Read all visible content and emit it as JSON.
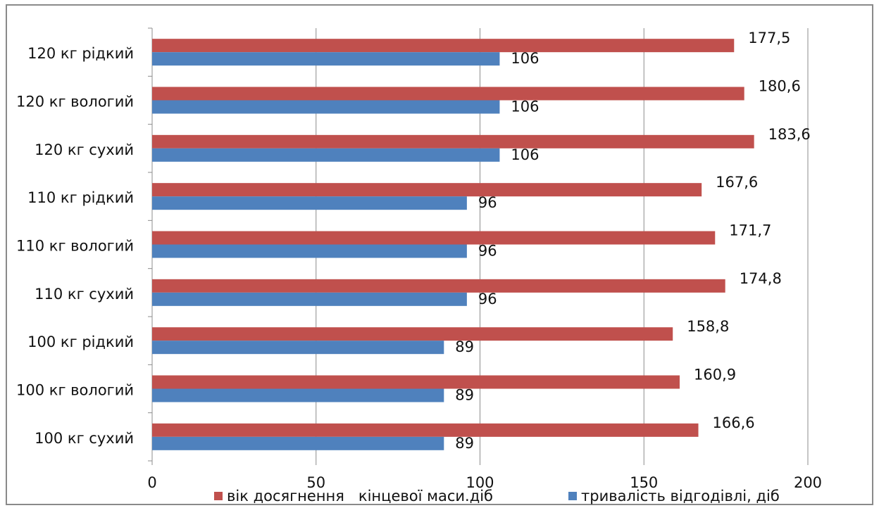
{
  "chart_data": {
    "type": "bar",
    "orientation": "horizontal",
    "title": "",
    "xlabel": "",
    "ylabel": "",
    "xlim": [
      0,
      200
    ],
    "x_ticks": [
      "0",
      "50",
      "100",
      "150",
      "200"
    ],
    "grid": true,
    "legend_position": "bottom",
    "categories": [
      "100 кг сухий",
      "100 кг вологий",
      "100 кг рідкий",
      "110 кг сухий",
      "110 кг вологий",
      "110 кг рідкий",
      "120 кг сухий",
      "120 кг вологий",
      "120 кг рідкий"
    ],
    "series": [
      {
        "name": "вік досягнення   кінцевої маси.діб",
        "color": "#c0504d",
        "values": [
          166.6,
          160.9,
          158.8,
          174.8,
          171.7,
          167.6,
          183.6,
          180.6,
          177.5
        ],
        "labels": [
          "166,6",
          "160,9",
          "158,8",
          "174,8",
          "171,7",
          "167,6",
          "183,6",
          "180,6",
          "177,5"
        ]
      },
      {
        "name": "тривалість відгодівлі, діб",
        "color": "#4f81bd",
        "values": [
          89,
          89,
          89,
          96,
          96,
          96,
          106,
          106,
          106
        ],
        "labels": [
          "89",
          "89",
          "89",
          "96",
          "96",
          "96",
          "106",
          "106",
          "106"
        ]
      }
    ]
  }
}
